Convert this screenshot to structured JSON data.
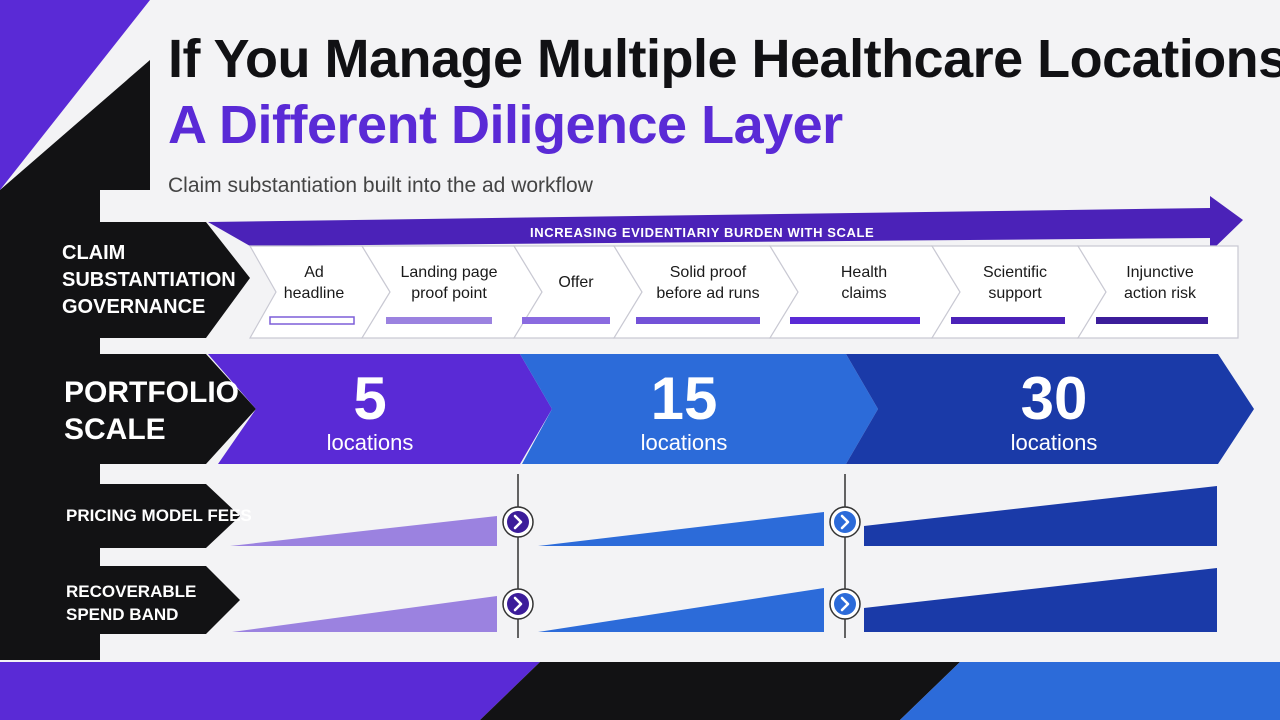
{
  "title": "If You Manage Multiple Healthcare Locations:",
  "subtitle": "A Different Diligence Layer",
  "tagline": "Claim substantiation built into the ad workflow",
  "colors": {
    "purple": "#5a2ad6",
    "light_purple": "#9b82e0",
    "blue": "#2c6bd9",
    "navy": "#1a3aa8",
    "black": "#121214"
  },
  "claim_row": {
    "label": "CLAIM SUBSTANTIATION GOVERNANCE",
    "label_lines": [
      "CLAIM",
      "SUBSTANTIATION",
      "GOVERNANCE"
    ],
    "burden_label": "INCREASING EVIDENTIARIY BURDEN WITH SCALE",
    "steps": [
      {
        "lines": [
          "Ad",
          "headline"
        ]
      },
      {
        "lines": [
          "Landing page",
          "proof point"
        ]
      },
      {
        "lines": [
          "Offer"
        ]
      },
      {
        "lines": [
          "Solid proof",
          "before ad runs"
        ]
      },
      {
        "lines": [
          "Health",
          "claims"
        ]
      },
      {
        "lines": [
          "Scientific",
          "support"
        ]
      },
      {
        "lines": [
          "Injunctive",
          "action risk"
        ]
      }
    ]
  },
  "scale_row": {
    "label_lines": [
      "PORTFOLIO",
      "SCALE"
    ],
    "tiers": [
      {
        "count": "5",
        "unit": "locations"
      },
      {
        "count": "15",
        "unit": "locations"
      },
      {
        "count": "30",
        "unit": "locations"
      }
    ]
  },
  "fees_row": {
    "label": "PRICING MODEL FEES"
  },
  "spend_row": {
    "label_lines": [
      "RECOVERABLE",
      "SPEND BAND"
    ]
  },
  "icons": [
    "chevron-right-icon",
    "chevron-right-icon",
    "chevron-right-icon",
    "chevron-right-icon"
  ]
}
